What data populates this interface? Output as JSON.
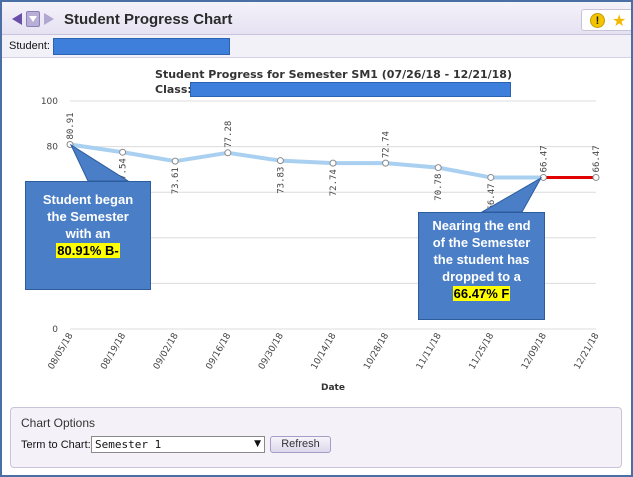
{
  "window": {
    "title": "Student Progress Chart",
    "icons": [
      "back-arrow-icon",
      "menu-icon",
      "forward-arrow-icon",
      "alert-icon",
      "favorite-star-icon"
    ]
  },
  "student": {
    "label": "Student:",
    "value": ""
  },
  "chart_data": {
    "type": "line",
    "title": "Student Progress for Semester SM1 (07/26/18 - 12/21/18)",
    "class_label": "Class:",
    "xlabel": "Date",
    "ylabel": "",
    "ylim": [
      0,
      100
    ],
    "yticks": [
      "0",
      "80",
      "100"
    ],
    "grid": true,
    "categories": [
      "08/05/18",
      "08/19/18",
      "09/02/18",
      "09/16/18",
      "09/30/18",
      "10/14/18",
      "10/28/18",
      "11/11/18",
      "11/25/18",
      "12/09/18",
      "12/21/18"
    ],
    "series": [
      {
        "values": [
          80.91,
          77.54,
          73.61,
          77.28,
          73.83,
          72.74,
          72.74,
          70.78,
          66.47,
          66.47,
          66.47
        ],
        "labels": [
          "80.91",
          "77.54",
          "73.61",
          "77.28",
          "73.83",
          "72.74",
          "72.74",
          "70.78",
          "66.47",
          "66.47",
          "66.47"
        ],
        "color": "#a9d0f0",
        "final_segment_color": "#e00000"
      }
    ]
  },
  "callouts": {
    "left": {
      "lines": [
        "Student began",
        "the Semester",
        "with an"
      ],
      "highlight": "80.91% B-"
    },
    "right": {
      "lines": [
        "Nearing the end",
        "of the Semester",
        "the student has",
        "dropped to a"
      ],
      "highlight": "66.47% F"
    }
  },
  "options": {
    "title": "Chart Options",
    "term_label": "Term to Chart:",
    "term_value": "Semester 1",
    "refresh_label": "Refresh"
  },
  "colors": {
    "accent": "#3e7fdc",
    "callout": "#4a7ec7",
    "highlight": "#ffff00"
  }
}
